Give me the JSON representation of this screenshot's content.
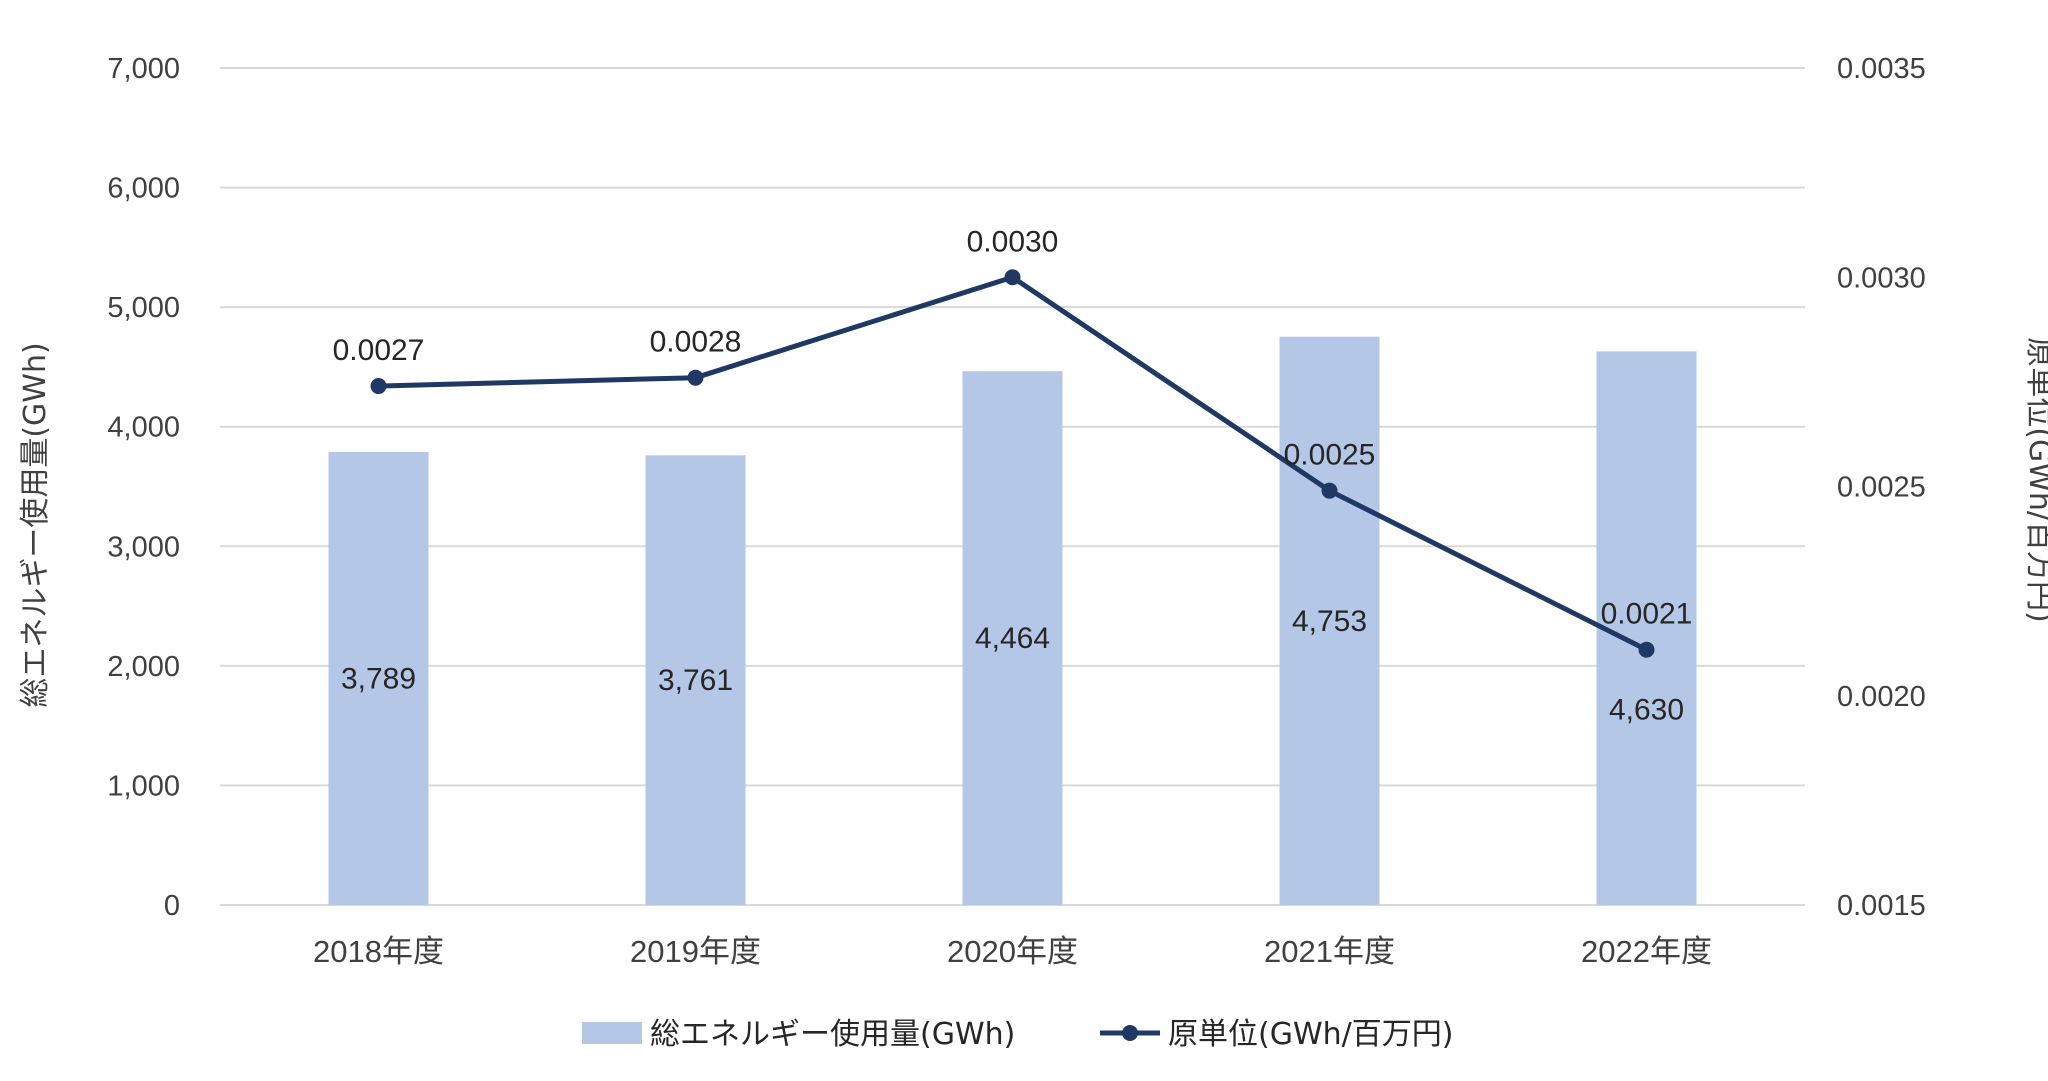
{
  "chart_data": {
    "type": "bar",
    "categories": [
      "2018年度",
      "2019年度",
      "2020年度",
      "2021年度",
      "2022年度"
    ],
    "series": [
      {
        "name": "総エネルギー使用量(GWh)",
        "type": "bar",
        "axis": "left",
        "values": [
          3789,
          3761,
          4464,
          4753,
          4630
        ],
        "labels": [
          "3,789",
          "3,761",
          "4,464",
          "4,753",
          "4,630"
        ],
        "color": "#b4c7e7"
      },
      {
        "name": "原単位(GWh/百万円)",
        "type": "line",
        "axis": "right",
        "values": [
          0.00274,
          0.00276,
          0.003,
          0.00249,
          0.00211
        ],
        "labels": [
          "0.0027",
          "0.0028",
          "0.0030",
          "0.0025",
          "0.0021"
        ],
        "color": "#1f3864"
      }
    ],
    "ylabel": "総エネルギー使用量(GWh)",
    "y2label": "原単位(GWh/百万円)",
    "ylim": [
      0,
      7000
    ],
    "y2lim": [
      0.0015,
      0.0035
    ],
    "yticks": [
      0,
      1000,
      2000,
      3000,
      4000,
      5000,
      6000,
      7000
    ],
    "ytick_labels": [
      "0",
      "1,000",
      "2,000",
      "3,000",
      "4,000",
      "5,000",
      "6,000",
      "7,000"
    ],
    "y2ticks": [
      0.0015,
      0.002,
      0.0025,
      0.003,
      0.0035
    ],
    "y2tick_labels": [
      "0.0015",
      "0.0020",
      "0.0025",
      "0.0030",
      "0.0035"
    ],
    "grid": true,
    "gridline_color": "#d9d9d9",
    "legend_position": "bottom",
    "legend": [
      "総エネルギー使用量(GWh)",
      "原単位(GWh/百万円)"
    ]
  }
}
